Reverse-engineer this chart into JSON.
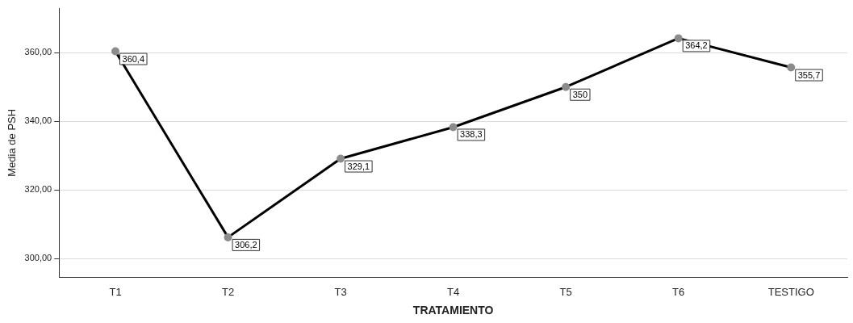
{
  "chart_data": {
    "type": "line",
    "xlabel": "TRATAMIENTO",
    "ylabel": "Media de PSH",
    "categories": [
      "T1",
      "T2",
      "T3",
      "T4",
      "T5",
      "T6",
      "TESTIGO"
    ],
    "series": [
      {
        "color": "#000000",
        "values": [
          360.4,
          306.2,
          329.1,
          338.3,
          350,
          364.2,
          355.7
        ],
        "value_labels": [
          "360,4",
          "306,2",
          "329,1",
          "338,3",
          "350",
          "364,2",
          "355,7"
        ]
      }
    ],
    "ylim": [
      294.5,
      373
    ],
    "yticks": [
      {
        "value": 300,
        "label": "300,00"
      },
      {
        "value": 320,
        "label": "320,00"
      },
      {
        "value": 340,
        "label": "340,00"
      },
      {
        "value": 360,
        "label": "360,00"
      }
    ],
    "grid": "y",
    "marker": "circle",
    "line_style": "solid",
    "legend": false
  }
}
